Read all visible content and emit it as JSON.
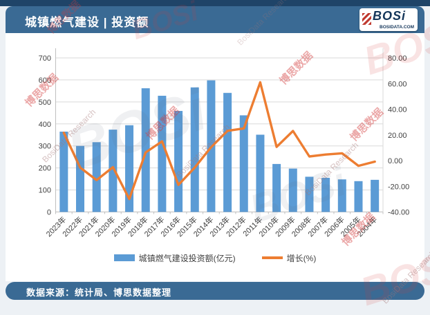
{
  "header": {
    "title": "城镇燃气建设 | 投资额",
    "logo": {
      "brand": "BOSi",
      "domain": "BOSIDATA.COM"
    }
  },
  "footer": {
    "source": "数据来源：统计局、博思数据整理"
  },
  "watermarks": {
    "red": "博思数据",
    "gray": "BosiData Research",
    "logo": "BOSi"
  },
  "colors": {
    "bar": "#5b9bd5",
    "line": "#ed7d31",
    "header_blue": "#3a6a94",
    "top_strip": "#1f4468",
    "grid": "#d9d9d9",
    "axis_line": "#bfbfbf",
    "axis_text": "#404040"
  },
  "chart_data": {
    "type": "bar",
    "subtype": "bar+line dual-axis combo",
    "categories": [
      "2023年",
      "2022年",
      "2021年",
      "2020年",
      "2019年",
      "2018年",
      "2017年",
      "2016年",
      "2015年",
      "2014年",
      "2013年",
      "2012年",
      "2011年",
      "2010年",
      "2009年",
      "2008年",
      "2007年",
      "2006年",
      "2005年",
      "2004年"
    ],
    "series": [
      {
        "name": "城镇燃气建设投资额(亿元)",
        "type": "bar",
        "axis": "left",
        "values": [
          365,
          300,
          317,
          374,
          394,
          562,
          528,
          459,
          566,
          598,
          541,
          439,
          351,
          218,
          197,
          160,
          155,
          148,
          140,
          146
        ]
      },
      {
        "name": "增长(%)",
        "type": "line",
        "axis": "right",
        "values": [
          21.7,
          -5.4,
          -15.2,
          -5.1,
          -29.9,
          6.4,
          15.0,
          -18.9,
          -5.4,
          10.5,
          23.2,
          25.1,
          61.0,
          10.7,
          23.1,
          3.2,
          4.7,
          5.7,
          -4.1,
          -0.8
        ]
      }
    ],
    "left_axis": {
      "min": 0,
      "max": 700,
      "step": 100,
      "tick_labels": [
        "0",
        "100",
        "200",
        "300",
        "400",
        "500",
        "600",
        "700"
      ]
    },
    "right_axis": {
      "min": -40,
      "max": 80,
      "step": 20,
      "tick_labels": [
        "80.00",
        "60.00",
        "40.00",
        "20.00",
        "0.00",
        "-20.00",
        "-40.00"
      ]
    },
    "grid": true,
    "legend_position": "bottom",
    "title": "城镇燃气建设 | 投资额",
    "xlabel": "",
    "ylabel_left": "亿元",
    "ylabel_right": "%"
  }
}
